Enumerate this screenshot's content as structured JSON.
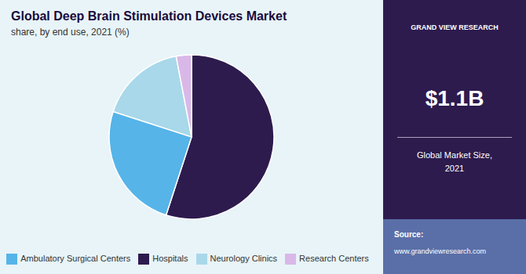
{
  "chart_data": {
    "type": "pie",
    "title": "Global Deep Brain Stimulation Devices Market",
    "subtitle": "share, by end use, 2021 (%)",
    "categories": [
      "Hospitals",
      "Ambulatory Surgical Centers",
      "Neurology Clinics",
      "Research Centers"
    ],
    "values": [
      55.0,
      25.0,
      17.0,
      3.0
    ],
    "colors": [
      "#2d1b4e",
      "#56b4e9",
      "#a8d8ea",
      "#d9b8e8"
    ],
    "legend": "bottom",
    "annotations": [
      "GRAND VIEW RESEARCH",
      "$1.1B",
      "Global Market Size,\n2021",
      "Source:",
      "www.grandviewresearch.com"
    ]
  }
}
